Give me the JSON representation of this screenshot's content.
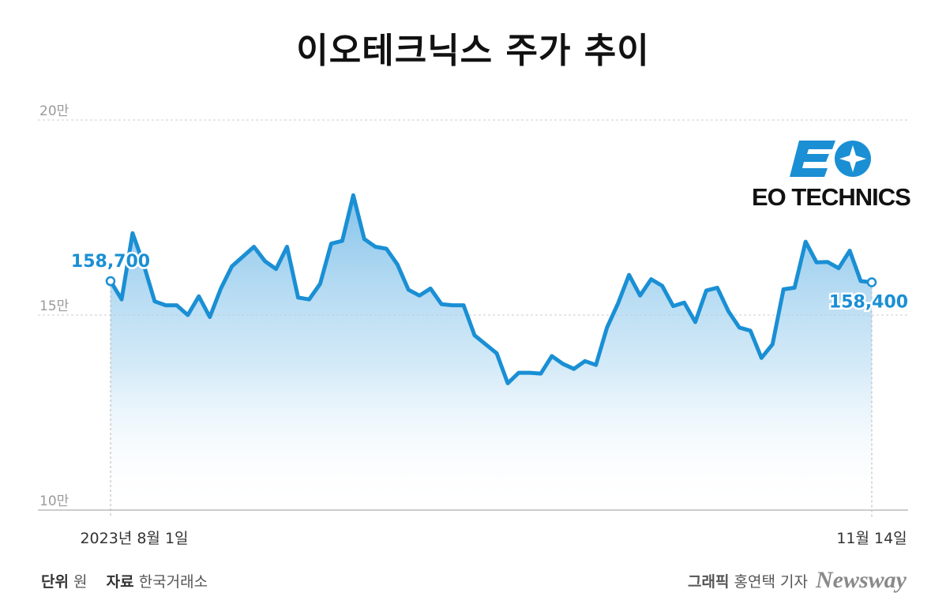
{
  "title": "이오테크닉스 주가 추이",
  "logo": {
    "text": "EO TECHNICS"
  },
  "footer": {
    "unit_label": "단위",
    "unit_value": "원",
    "source_label": "자료",
    "source_value": "한국거래소",
    "credit_label": "그래픽",
    "credit_value": "홍연택 기자",
    "brand": "Newsway"
  },
  "chart_data": {
    "type": "area",
    "title": "이오테크닉스 주가 추이",
    "xlabel": "",
    "ylabel": "",
    "ylim": [
      100000,
      200000
    ],
    "y_ticks": [
      {
        "value": 200000,
        "label": "20만"
      },
      {
        "value": 150000,
        "label": "15만"
      },
      {
        "value": 100000,
        "label": "10만"
      }
    ],
    "x_tick_labels": [
      "2023년 8월 1일",
      "11월 14일"
    ],
    "grid": true,
    "annotations": [
      {
        "label": "158,700",
        "index": 0
      },
      {
        "label": "158,400",
        "index": 69
      }
    ],
    "series": [
      {
        "values": [
          158700,
          154000,
          171000,
          163000,
          153500,
          152500,
          152500,
          150000,
          154800,
          149500,
          156800,
          162500,
          165000,
          167500,
          163800,
          161800,
          167500,
          154500,
          154000,
          158000,
          168300,
          169000,
          180700,
          169500,
          167500,
          167000,
          163000,
          156500,
          155000,
          156800,
          152800,
          152500,
          152500,
          144800,
          142500,
          140200,
          132500,
          135200,
          135200,
          135000,
          139500,
          137500,
          136200,
          138200,
          137200,
          146800,
          153000,
          160300,
          155000,
          159200,
          157500,
          152300,
          153200,
          148200,
          156300,
          157000,
          151000,
          146800,
          146000,
          139000,
          142500,
          156600,
          157000,
          168800,
          163500,
          163600,
          162000,
          166500,
          158700,
          158400
        ]
      }
    ]
  }
}
